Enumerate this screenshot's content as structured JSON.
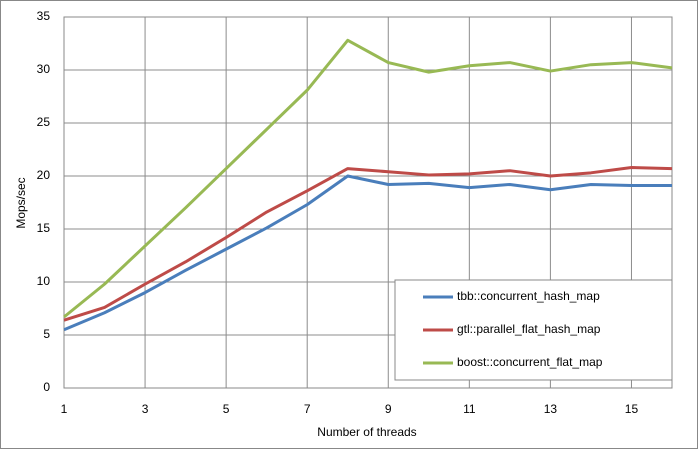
{
  "chart_data": {
    "type": "line",
    "x": [
      1,
      2,
      3,
      4,
      5,
      6,
      7,
      8,
      9,
      10,
      11,
      12,
      13,
      14,
      15,
      16
    ],
    "xlabel": "Number of threads",
    "ylabel": "Mops/sec",
    "xlim": [
      1,
      16
    ],
    "xticks": [
      1,
      3,
      5,
      7,
      9,
      11,
      13,
      15
    ],
    "ylim": [
      0,
      35
    ],
    "yticks": [
      0,
      5,
      10,
      15,
      20,
      25,
      30,
      35
    ],
    "grid": true,
    "legend": "lower right",
    "series": [
      {
        "name": "tbb::concurrent_hash_map",
        "color": "#4a7ebb",
        "values": [
          5.5,
          7.1,
          9.0,
          11.1,
          13.1,
          15.1,
          17.3,
          20.0,
          19.2,
          19.3,
          18.9,
          19.2,
          18.7,
          19.2,
          19.1,
          19.1
        ]
      },
      {
        "name": "gtl::parallel_flat_hash_map",
        "color": "#be4b48",
        "values": [
          6.4,
          7.6,
          9.8,
          11.9,
          14.2,
          16.6,
          18.6,
          20.7,
          20.4,
          20.1,
          20.2,
          20.5,
          20.0,
          20.3,
          20.8,
          20.7
        ]
      },
      {
        "name": "boost::concurrent_flat_map",
        "color": "#98b954",
        "values": [
          6.7,
          9.8,
          13.4,
          17.0,
          20.7,
          24.4,
          28.1,
          32.8,
          30.7,
          29.8,
          30.4,
          30.7,
          29.9,
          30.5,
          30.7,
          30.2
        ]
      }
    ]
  }
}
